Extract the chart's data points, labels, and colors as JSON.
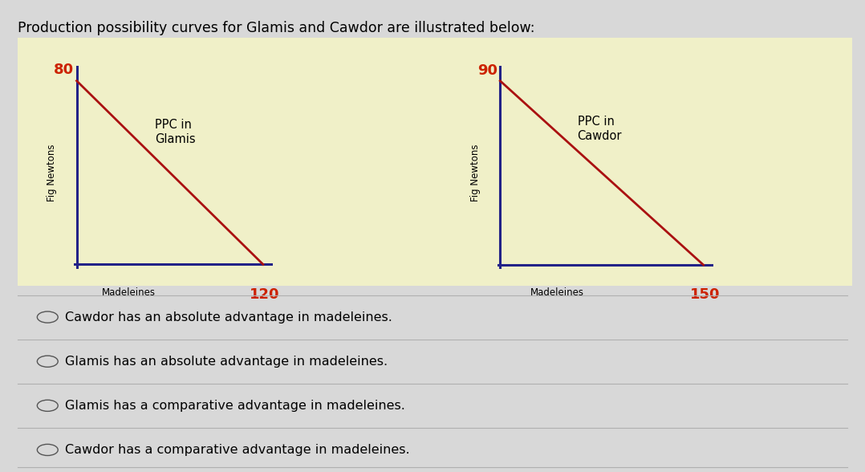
{
  "title": "Production possibility curves for Glamis and Cawdor are illustrated below:",
  "title_fontsize": 12.5,
  "bg_color": "#d8d8d8",
  "chart_bg_color": "#f0f0c8",
  "glamis": {
    "fig_newtons_max": 80,
    "madeleines_max": 120,
    "label": "PPC in\nGlamis",
    "xlabel": "Madeleines",
    "ylabel": "Fig Newtons"
  },
  "cawdor": {
    "fig_newtons_max": 90,
    "madeleines_max": 150,
    "label": "PPC in\nCawdor",
    "xlabel": "Madeleines",
    "ylabel": "Fig Newtons"
  },
  "ppc_line_color": "#aa1111",
  "axis_color": "#222288",
  "axis_linewidth": 2.2,
  "ppc_linewidth": 2.0,
  "number_color_y": "#cc2200",
  "number_color_x": "#cc2200",
  "choices": [
    "Cawdor has an absolute advantage in madeleines.",
    "Glamis has an absolute advantage in madeleines.",
    "Glamis has a comparative advantage in madeleines.",
    "Cawdor has a comparative advantage in madeleines."
  ],
  "choice_fontsize": 11.5,
  "divider_color": "#b0b0b0"
}
